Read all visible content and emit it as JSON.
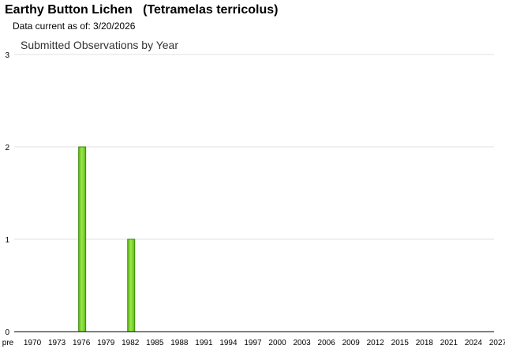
{
  "header": {
    "title": "Earthy Button Lichen   (Tetramelas terricolus)",
    "data_current": "Data current as of: 3/20/2026"
  },
  "chart_data": {
    "type": "bar",
    "title": "Submitted Observations by Year",
    "xlabel": "",
    "ylabel": "",
    "ylim": [
      0,
      3
    ],
    "yticks": [
      "0",
      "1",
      "2",
      "3"
    ],
    "grid": true,
    "x_tick_labels": [
      "pre",
      "1970",
      "1973",
      "1976",
      "1979",
      "1982",
      "1985",
      "1988",
      "1991",
      "1994",
      "1997",
      "2000",
      "2003",
      "2006",
      "2009",
      "2012",
      "2015",
      "2018",
      "2021",
      "2024",
      "2027"
    ],
    "categories": [
      "1976",
      "1982"
    ],
    "values": [
      2,
      1
    ],
    "bar_color": "#7ed321"
  }
}
